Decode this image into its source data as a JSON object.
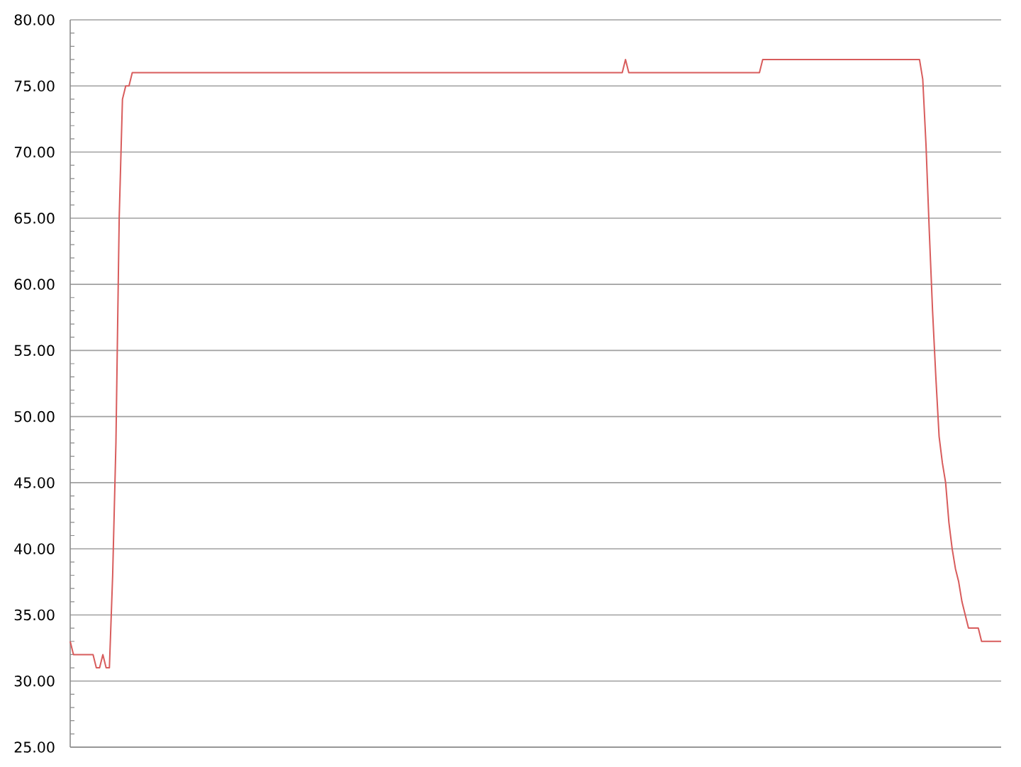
{
  "chart_data": {
    "type": "line",
    "categories": [
      null,
      null,
      null,
      null,
      null,
      null,
      null,
      null,
      null,
      null,
      null,
      null,
      null,
      null,
      null,
      null,
      null,
      null,
      null,
      null,
      null,
      null,
      null,
      null,
      null,
      null,
      null,
      null,
      null,
      null,
      null,
      null,
      null,
      null,
      null,
      null,
      null,
      null,
      null,
      null,
      null,
      null,
      null,
      null,
      null,
      null,
      null,
      null,
      null,
      null,
      null,
      null,
      null,
      null,
      null,
      null,
      null,
      null,
      null,
      null,
      null,
      null,
      null,
      null,
      null,
      null,
      null,
      null,
      null,
      null,
      null,
      null,
      null,
      null,
      null,
      null,
      null,
      null,
      null,
      null,
      null,
      null,
      null,
      null,
      null,
      null,
      null,
      null,
      null,
      null,
      null,
      null,
      null,
      null,
      null,
      null,
      null,
      null,
      null,
      null,
      null,
      null,
      null,
      null,
      null,
      null,
      null,
      null,
      null,
      null,
      null,
      null,
      null,
      null,
      null,
      null,
      null,
      null,
      null,
      null,
      null,
      null,
      null,
      null,
      null,
      null,
      null,
      null,
      null,
      null,
      null,
      null,
      null,
      null,
      null,
      null,
      null,
      null,
      null,
      null,
      null,
      null,
      null,
      null,
      null,
      null,
      null,
      null,
      null,
      null,
      null,
      null,
      null,
      null,
      null,
      null,
      null,
      null,
      null,
      null,
      null,
      null,
      null,
      null,
      null,
      null,
      null,
      null,
      null,
      null,
      null,
      null,
      null,
      null,
      null,
      null,
      null,
      null,
      null,
      null,
      null,
      null,
      null,
      null,
      null,
      null,
      null,
      null,
      null,
      null,
      null,
      null,
      null,
      null,
      null,
      null,
      null,
      null,
      null,
      null,
      null,
      null,
      null,
      null,
      null,
      null,
      null,
      null,
      null,
      null,
      null,
      null,
      null,
      null,
      null,
      null,
      null,
      null,
      null,
      null,
      null,
      null,
      null,
      null,
      null,
      null,
      null,
      null,
      null,
      null,
      null,
      null,
      null,
      null,
      null,
      null,
      null,
      null,
      null,
      null,
      null,
      null,
      null,
      null,
      null,
      null,
      null,
      null,
      null,
      null,
      null,
      null,
      null,
      null,
      null,
      null,
      null,
      null,
      null,
      null,
      null,
      null,
      null,
      null,
      null,
      null,
      null,
      null,
      null,
      null,
      null,
      null,
      null,
      null,
      null,
      null,
      null,
      null,
      null,
      null,
      null,
      null,
      null,
      null,
      null,
      null
    ],
    "values": [
      33,
      32,
      32,
      32,
      32,
      32,
      32,
      32,
      31,
      31,
      32,
      31,
      31,
      38,
      48,
      65,
      74,
      75,
      75,
      76,
      76,
      76,
      76,
      76,
      76,
      76,
      76,
      76,
      76,
      76,
      76,
      76,
      76,
      76,
      76,
      76,
      76,
      76,
      76,
      76,
      76,
      76,
      76,
      76,
      76,
      76,
      76,
      76,
      76,
      76,
      76,
      76,
      76,
      76,
      76,
      76,
      76,
      76,
      76,
      76,
      76,
      76,
      76,
      76,
      76,
      76,
      76,
      76,
      76,
      76,
      76,
      76,
      76,
      76,
      76,
      76,
      76,
      76,
      76,
      76,
      76,
      76,
      76,
      76,
      76,
      76,
      76,
      76,
      76,
      76,
      76,
      76,
      76,
      76,
      76,
      76,
      76,
      76,
      76,
      76,
      76,
      76,
      76,
      76,
      76,
      76,
      76,
      76,
      76,
      76,
      76,
      76,
      76,
      76,
      76,
      76,
      76,
      76,
      76,
      76,
      76,
      76,
      76,
      76,
      76,
      76,
      76,
      76,
      76,
      76,
      76,
      76,
      76,
      76,
      76,
      76,
      76,
      76,
      76,
      76,
      76,
      76,
      76,
      76,
      76,
      76,
      76,
      76,
      76,
      76,
      76,
      76,
      76,
      76,
      76,
      76,
      76,
      76,
      76,
      76,
      76,
      76,
      76,
      76,
      76,
      76,
      76,
      76,
      76,
      76,
      77,
      76,
      76,
      76,
      76,
      76,
      76,
      76,
      76,
      76,
      76,
      76,
      76,
      76,
      76,
      76,
      76,
      76,
      76,
      76,
      76,
      76,
      76,
      76,
      76,
      76,
      76,
      76,
      76,
      76,
      76,
      76,
      76,
      76,
      76,
      76,
      76,
      76,
      76,
      76,
      76,
      76,
      77,
      77,
      77,
      77,
      77,
      77,
      77,
      77,
      77,
      77,
      77,
      77,
      77,
      77,
      77,
      77,
      77,
      77,
      77,
      77,
      77,
      77,
      77,
      77,
      77,
      77,
      77,
      77,
      77,
      77,
      77,
      77,
      77,
      77,
      77,
      77,
      77,
      77,
      77,
      77,
      77,
      77,
      77,
      77,
      77,
      77,
      77,
      77,
      77,
      75.5,
      70.5,
      64,
      58,
      53,
      48.5,
      46.5,
      45,
      42,
      40,
      38.5,
      37.5,
      36,
      35,
      34,
      34,
      34,
      34,
      33,
      33,
      33,
      33,
      33,
      33,
      33
    ],
    "color": "#d85c5c",
    "ylim": [
      25,
      80
    ],
    "yticks": [
      {
        "value": 25,
        "label": "25.00"
      },
      {
        "value": 26,
        "label": null
      },
      {
        "value": 27,
        "label": null
      },
      {
        "value": 28,
        "label": null
      },
      {
        "value": 29,
        "label": null
      },
      {
        "value": 30,
        "label": "30.00"
      },
      {
        "value": 31,
        "label": null
      },
      {
        "value": 32,
        "label": null
      },
      {
        "value": 33,
        "label": null
      },
      {
        "value": 34,
        "label": null
      },
      {
        "value": 35,
        "label": "35.00"
      },
      {
        "value": 36,
        "label": null
      },
      {
        "value": 37,
        "label": null
      },
      {
        "value": 38,
        "label": null
      },
      {
        "value": 39,
        "label": null
      },
      {
        "value": 40,
        "label": "40.00"
      },
      {
        "value": 41,
        "label": null
      },
      {
        "value": 42,
        "label": null
      },
      {
        "value": 43,
        "label": null
      },
      {
        "value": 44,
        "label": null
      },
      {
        "value": 45,
        "label": "45.00"
      },
      {
        "value": 46,
        "label": null
      },
      {
        "value": 47,
        "label": null
      },
      {
        "value": 48,
        "label": null
      },
      {
        "value": 49,
        "label": null
      },
      {
        "value": 50,
        "label": "50.00"
      },
      {
        "value": 51,
        "label": null
      },
      {
        "value": 52,
        "label": null
      },
      {
        "value": 53,
        "label": null
      },
      {
        "value": 54,
        "label": null
      },
      {
        "value": 55,
        "label": "55.00"
      },
      {
        "value": 56,
        "label": null
      },
      {
        "value": 57,
        "label": null
      },
      {
        "value": 58,
        "label": null
      },
      {
        "value": 59,
        "label": null
      },
      {
        "value": 60,
        "label": "60.00"
      },
      {
        "value": 61,
        "label": null
      },
      {
        "value": 62,
        "label": null
      },
      {
        "value": 63,
        "label": null
      },
      {
        "value": 64,
        "label": null
      },
      {
        "value": 65,
        "label": "65.00"
      },
      {
        "value": 66,
        "label": null
      },
      {
        "value": 67,
        "label": null
      },
      {
        "value": 68,
        "label": null
      },
      {
        "value": 69,
        "label": null
      },
      {
        "value": 70,
        "label": "70.00"
      },
      {
        "value": 71,
        "label": null
      },
      {
        "value": 72,
        "label": null
      },
      {
        "value": 73,
        "label": null
      },
      {
        "value": 74,
        "label": null
      },
      {
        "value": 75,
        "label": "75.00"
      },
      {
        "value": 76,
        "label": null
      },
      {
        "value": 77,
        "label": null
      },
      {
        "value": 78,
        "label": null
      },
      {
        "value": 79,
        "label": null
      },
      {
        "value": 80,
        "label": "80.00"
      }
    ],
    "grid": "y"
  }
}
